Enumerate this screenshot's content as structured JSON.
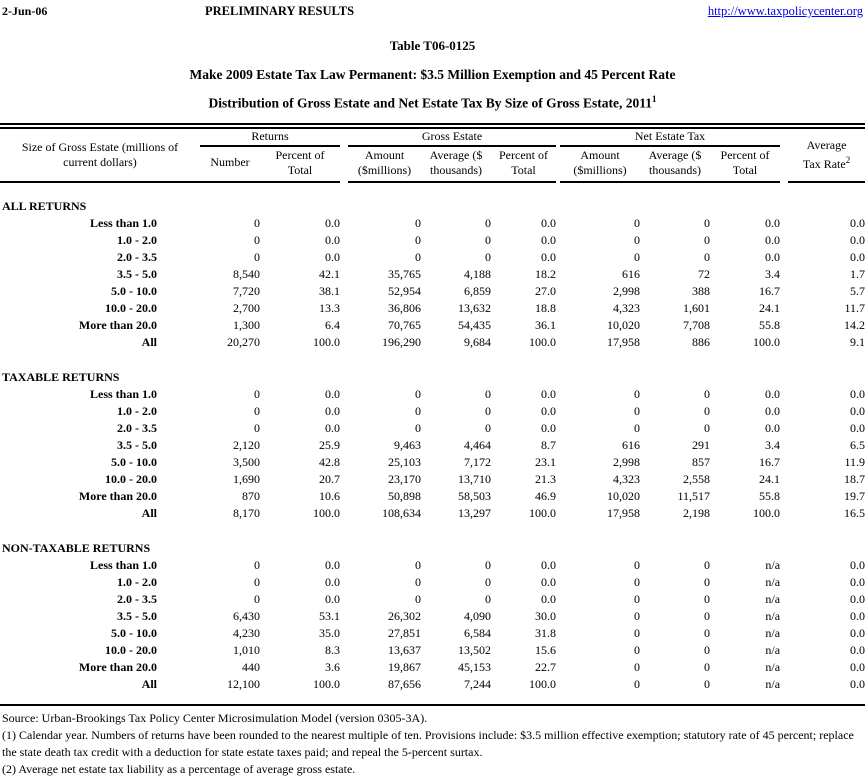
{
  "page_header": {
    "date": "2-Jun-06",
    "status": "PRELIMINARY RESULTS",
    "link": "http://www.taxpolicycenter.org"
  },
  "title": {
    "table_number": "Table T06-0125",
    "subtitle": "Make 2009 Estate Tax Law Permanent: $3.5 Million Exemption and 45 Percent Rate",
    "subtitle2": "Distribution of Gross Estate and Net Estate Tax By Size of Gross Estate, 2011",
    "subtitle2_footnote_ref": "1"
  },
  "table": {
    "stub_header_lines": [
      "Size of Gross Estate (millions of",
      "current dollars)"
    ],
    "groups": [
      {
        "label": "Returns"
      },
      {
        "label": "Gross Estate"
      },
      {
        "label": "Net Estate Tax"
      }
    ],
    "sub_headers": [
      [
        "Number"
      ],
      [
        "Percent of",
        "Total"
      ],
      [
        "Amount",
        "($millions)"
      ],
      [
        "Average ($",
        "thousands)"
      ],
      [
        "Percent of",
        "Total"
      ],
      [
        "Amount",
        "($millions)"
      ],
      [
        "Average ($",
        "thousands)"
      ],
      [
        "Percent of",
        "Total"
      ]
    ],
    "avg_tax_rate_lines": [
      "Average",
      "Tax Rate"
    ],
    "avg_tax_rate_footnote_ref": "2",
    "sections": [
      {
        "label": "ALL RETURNS",
        "rows": [
          {
            "label": "Less than 1.0",
            "values": [
              "0",
              "0.0",
              "0",
              "0",
              "0.0",
              "0",
              "0",
              "0.0",
              "0.0"
            ]
          },
          {
            "label": "1.0 - 2.0",
            "values": [
              "0",
              "0.0",
              "0",
              "0",
              "0.0",
              "0",
              "0",
              "0.0",
              "0.0"
            ]
          },
          {
            "label": "2.0 - 3.5",
            "values": [
              "0",
              "0.0",
              "0",
              "0",
              "0.0",
              "0",
              "0",
              "0.0",
              "0.0"
            ]
          },
          {
            "label": "3.5 - 5.0",
            "values": [
              "8,540",
              "42.1",
              "35,765",
              "4,188",
              "18.2",
              "616",
              "72",
              "3.4",
              "1.7"
            ]
          },
          {
            "label": "5.0 - 10.0",
            "values": [
              "7,720",
              "38.1",
              "52,954",
              "6,859",
              "27.0",
              "2,998",
              "388",
              "16.7",
              "5.7"
            ]
          },
          {
            "label": "10.0 - 20.0",
            "values": [
              "2,700",
              "13.3",
              "36,806",
              "13,632",
              "18.8",
              "4,323",
              "1,601",
              "24.1",
              "11.7"
            ]
          },
          {
            "label": "More than 20.0",
            "values": [
              "1,300",
              "6.4",
              "70,765",
              "54,435",
              "36.1",
              "10,020",
              "7,708",
              "55.8",
              "14.2"
            ]
          },
          {
            "label": "All",
            "values": [
              "20,270",
              "100.0",
              "196,290",
              "9,684",
              "100.0",
              "17,958",
              "886",
              "100.0",
              "9.1"
            ]
          }
        ]
      },
      {
        "label": "TAXABLE RETURNS",
        "rows": [
          {
            "label": "Less than 1.0",
            "values": [
              "0",
              "0.0",
              "0",
              "0",
              "0.0",
              "0",
              "0",
              "0.0",
              "0.0"
            ]
          },
          {
            "label": "1.0 - 2.0",
            "values": [
              "0",
              "0.0",
              "0",
              "0",
              "0.0",
              "0",
              "0",
              "0.0",
              "0.0"
            ]
          },
          {
            "label": "2.0 - 3.5",
            "values": [
              "0",
              "0.0",
              "0",
              "0",
              "0.0",
              "0",
              "0",
              "0.0",
              "0.0"
            ]
          },
          {
            "label": "3.5 - 5.0",
            "values": [
              "2,120",
              "25.9",
              "9,463",
              "4,464",
              "8.7",
              "616",
              "291",
              "3.4",
              "6.5"
            ]
          },
          {
            "label": "5.0 - 10.0",
            "values": [
              "3,500",
              "42.8",
              "25,103",
              "7,172",
              "23.1",
              "2,998",
              "857",
              "16.7",
              "11.9"
            ]
          },
          {
            "label": "10.0 - 20.0",
            "values": [
              "1,690",
              "20.7",
              "23,170",
              "13,710",
              "21.3",
              "4,323",
              "2,558",
              "24.1",
              "18.7"
            ]
          },
          {
            "label": "More than 20.0",
            "values": [
              "870",
              "10.6",
              "50,898",
              "58,503",
              "46.9",
              "10,020",
              "11,517",
              "55.8",
              "19.7"
            ]
          },
          {
            "label": "All",
            "values": [
              "8,170",
              "100.0",
              "108,634",
              "13,297",
              "100.0",
              "17,958",
              "2,198",
              "100.0",
              "16.5"
            ]
          }
        ]
      },
      {
        "label": "NON-TAXABLE RETURNS",
        "rows": [
          {
            "label": "Less than 1.0",
            "values": [
              "0",
              "0.0",
              "0",
              "0",
              "0.0",
              "0",
              "0",
              "n/a",
              "0.0"
            ]
          },
          {
            "label": "1.0 - 2.0",
            "values": [
              "0",
              "0.0",
              "0",
              "0",
              "0.0",
              "0",
              "0",
              "n/a",
              "0.0"
            ]
          },
          {
            "label": "2.0 - 3.5",
            "values": [
              "0",
              "0.0",
              "0",
              "0",
              "0.0",
              "0",
              "0",
              "n/a",
              "0.0"
            ]
          },
          {
            "label": "3.5 - 5.0",
            "values": [
              "6,430",
              "53.1",
              "26,302",
              "4,090",
              "30.0",
              "0",
              "0",
              "n/a",
              "0.0"
            ]
          },
          {
            "label": "5.0 - 10.0",
            "values": [
              "4,230",
              "35.0",
              "27,851",
              "6,584",
              "31.8",
              "0",
              "0",
              "n/a",
              "0.0"
            ]
          },
          {
            "label": "10.0 - 20.0",
            "values": [
              "1,010",
              "8.3",
              "13,637",
              "13,502",
              "15.6",
              "0",
              "0",
              "n/a",
              "0.0"
            ]
          },
          {
            "label": "More than 20.0",
            "values": [
              "440",
              "3.6",
              "19,867",
              "45,153",
              "22.7",
              "0",
              "0",
              "n/a",
              "0.0"
            ]
          },
          {
            "label": "All",
            "values": [
              "12,100",
              "100.0",
              "87,656",
              "7,244",
              "100.0",
              "0",
              "0",
              "n/a",
              "0.0"
            ]
          }
        ]
      }
    ]
  },
  "footnotes": {
    "source": "Source: Urban-Brookings Tax Policy Center Microsimulation Model (version 0305-3A).",
    "note1": "(1) Calendar year. Numbers of returns have been rounded to the nearest multiple of ten. Provisions include: $3.5 million effective exemption;  statutory rate of 45 percent; replace the state death tax credit with a deduction for state estate taxes paid; and repeal the 5-percent surtax.",
    "note2": "(2) Average net estate tax liability as a percentage of average gross estate."
  }
}
